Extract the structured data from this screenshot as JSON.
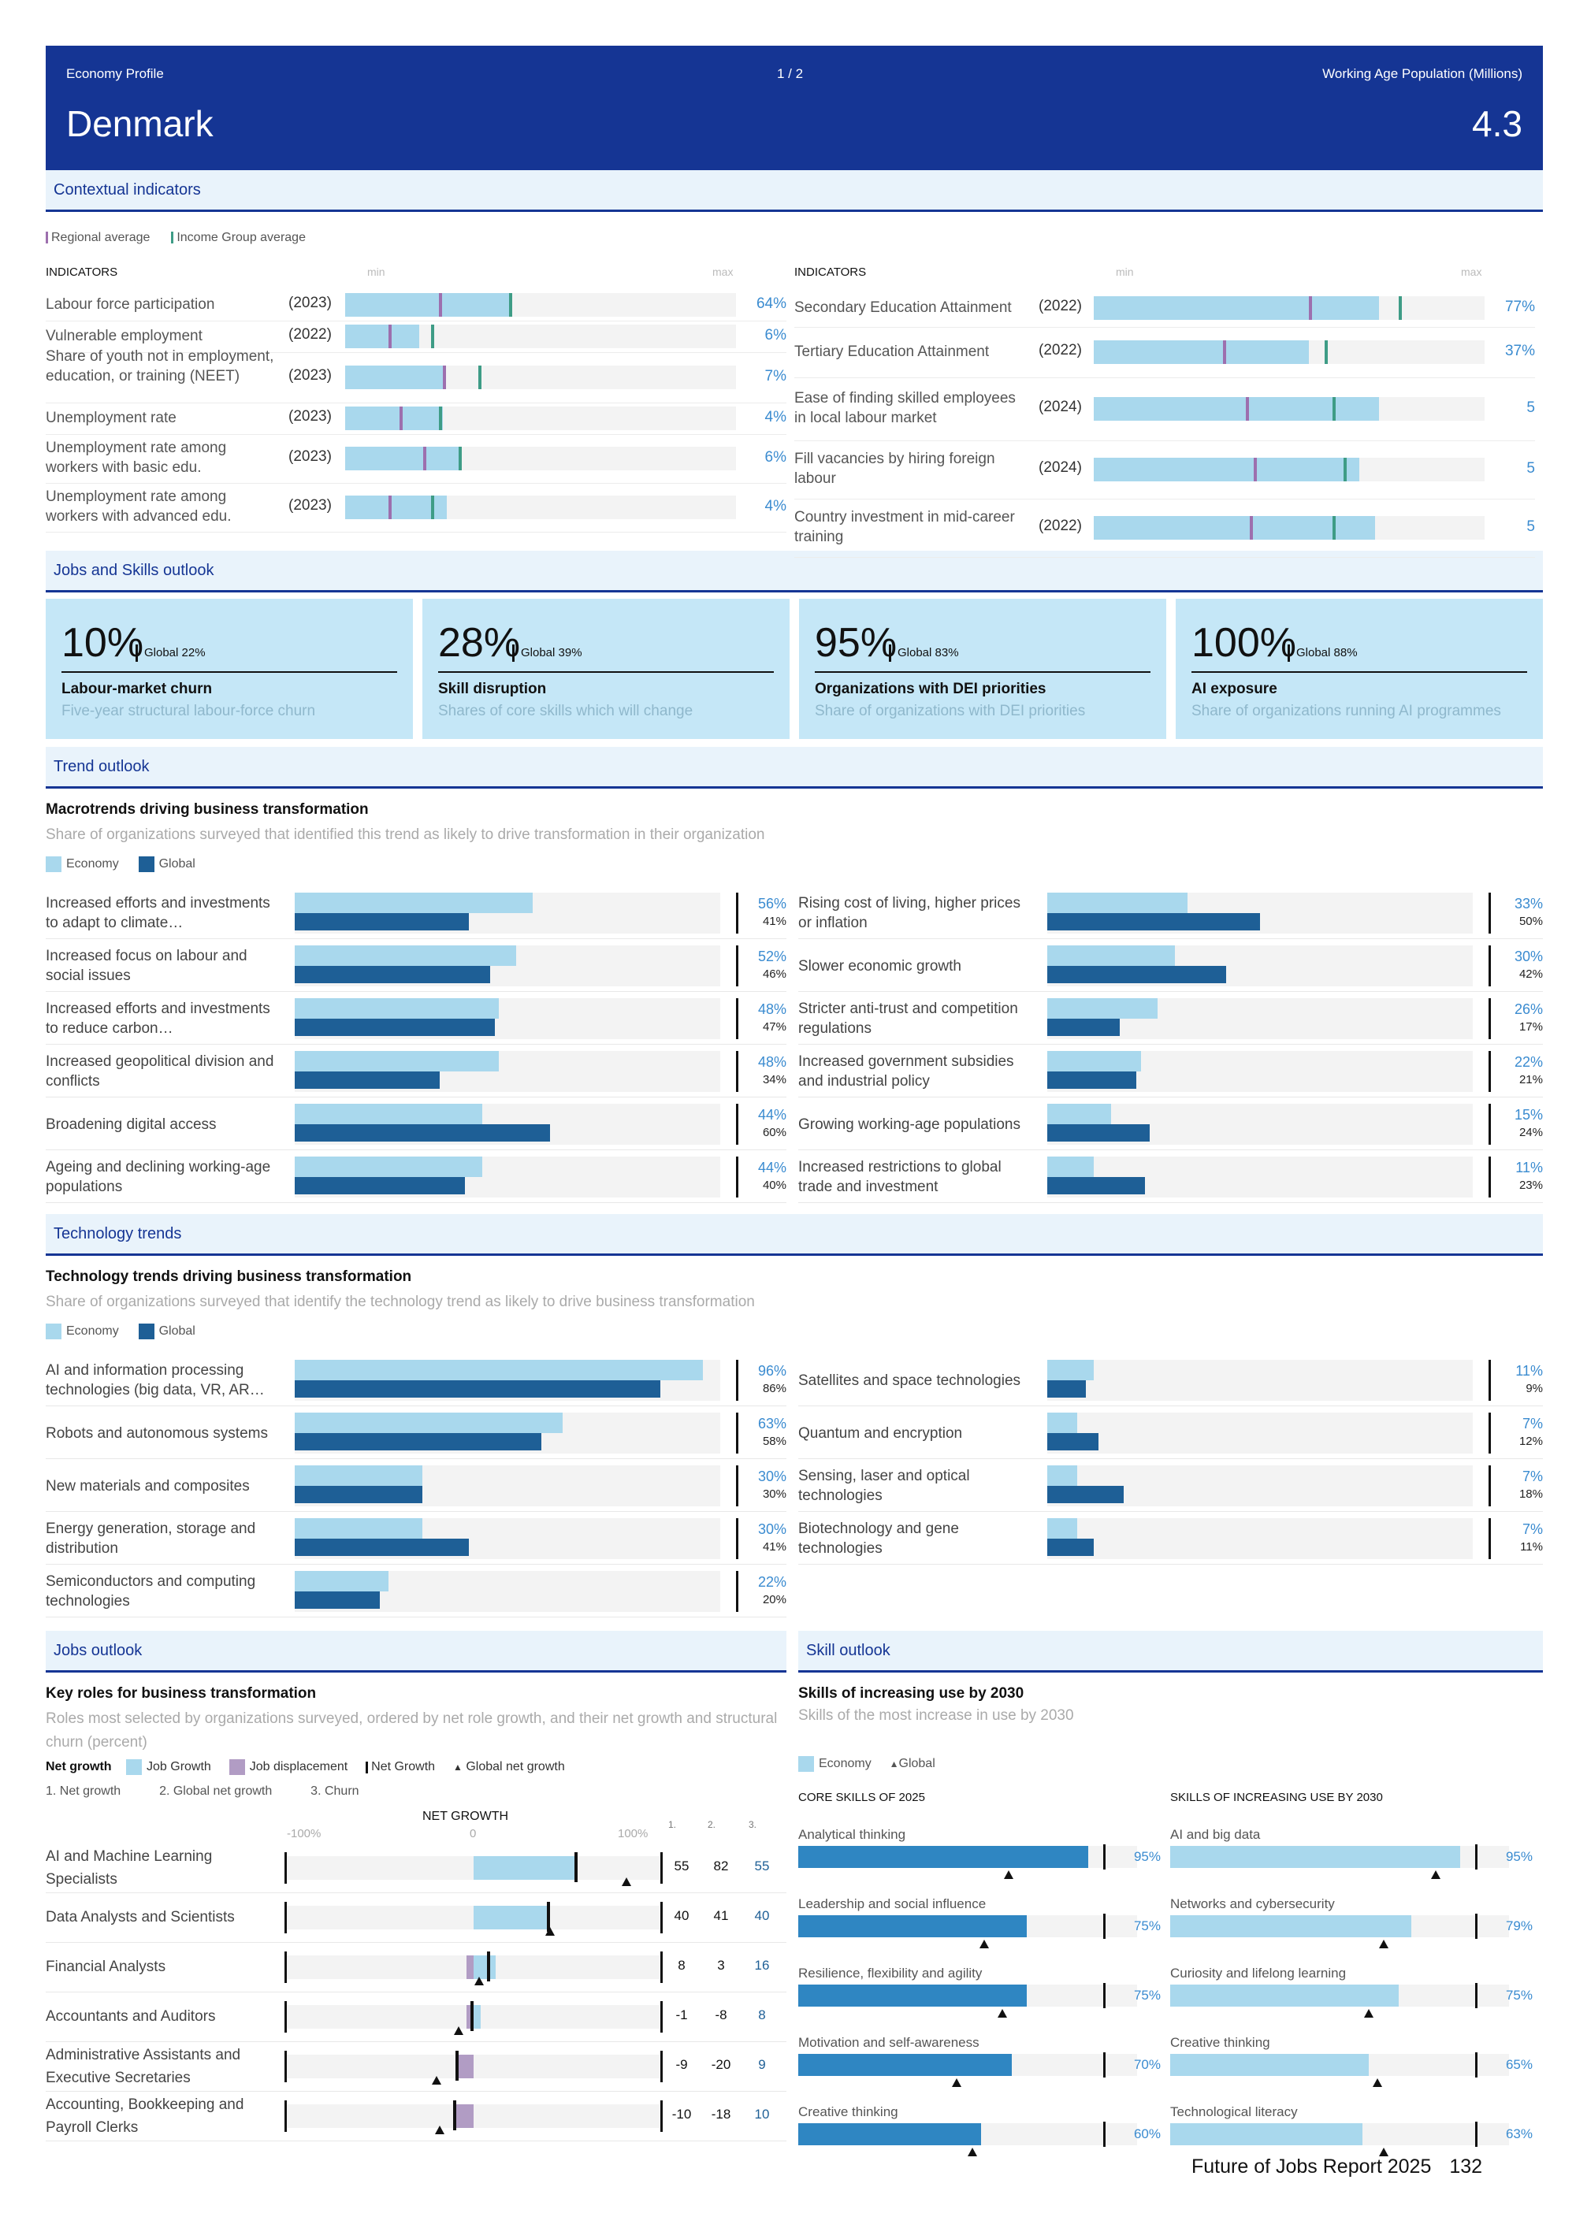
{
  "header": {
    "profile_label": "Economy Profile",
    "page_indicator": "1 / 2",
    "population_label": "Working Age Population (Millions)",
    "country": "Denmark",
    "population_value": "4.3"
  },
  "contextual": {
    "section_title": "Contextual indicators",
    "legend_regional": "Regional average",
    "legend_income": "Income Group average",
    "col_header": "INDICATORS",
    "min_label": "min",
    "max_label": "max",
    "left": [
      {
        "name": "Labour force participation",
        "year": "(2023)",
        "value": "64%",
        "fill": 0.42,
        "regional": 0.24,
        "income": 0.42
      },
      {
        "name": "Vulnerable employment",
        "year": "(2022)",
        "value": "6%",
        "fill": 0.19,
        "regional": 0.11,
        "income": 0.22
      },
      {
        "name": "Share of youth not in employment, education, or training (NEET)",
        "year": "(2023)",
        "value": "7%",
        "fill": 0.25,
        "regional": 0.25,
        "income": 0.34
      },
      {
        "name": "Unemployment rate",
        "year": "(2023)",
        "value": "4%",
        "fill": 0.25,
        "regional": 0.14,
        "income": 0.24
      },
      {
        "name": "Unemployment rate among workers with basic edu.",
        "year": "(2023)",
        "value": "6%",
        "fill": 0.29,
        "regional": 0.2,
        "income": 0.29
      },
      {
        "name": "Unemployment rate among workers with advanced edu.",
        "year": "(2023)",
        "value": "4%",
        "fill": 0.26,
        "regional": 0.11,
        "income": 0.22
      }
    ],
    "right": [
      {
        "name": "Secondary Education Attainment",
        "year": "(2022)",
        "value": "77%",
        "fill": 0.73,
        "regional": 0.55,
        "income": 0.78
      },
      {
        "name": "Tertiary Education Attainment",
        "year": "(2022)",
        "value": "37%",
        "fill": 0.55,
        "regional": 0.33,
        "income": 0.59
      },
      {
        "name": "Ease of finding skilled employees in local labour market",
        "year": "(2024)",
        "value": "5",
        "fill": 0.73,
        "regional": 0.39,
        "income": 0.61
      },
      {
        "name": "Fill vacancies by hiring foreign labour",
        "year": "(2024)",
        "value": "5",
        "fill": 0.68,
        "regional": 0.41,
        "income": 0.64
      },
      {
        "name": "Country investment in mid-career training",
        "year": "(2022)",
        "value": "5",
        "fill": 0.72,
        "regional": 0.4,
        "income": 0.61
      }
    ]
  },
  "outlook": {
    "section_title": "Jobs and Skills outlook",
    "tiles": [
      {
        "big": "10%",
        "global": "Global  22%",
        "title": "Labour-market churn",
        "subtitle": "Five-year structural labour-force churn"
      },
      {
        "big": "28%",
        "global": "Global  39%",
        "title": "Skill disruption",
        "subtitle": "Shares of core skills which will change"
      },
      {
        "big": "95%",
        "global": "Global  83%",
        "title": "Organizations with DEI priorities",
        "subtitle": "Share of organizations with DEI priorities"
      },
      {
        "big": "100%",
        "global": "Global  88%",
        "title": "AI exposure",
        "subtitle": "Share of organizations running AI programmes"
      }
    ]
  },
  "trend": {
    "section_title": "Trend outlook",
    "title": "Macrotrends driving business transformation",
    "subtitle": "Share of organizations surveyed that identified this trend as likely to drive transformation in their organization",
    "legend_economy": "Economy",
    "legend_global": "Global",
    "left": [
      {
        "name": "Increased efforts and investments to adapt to climate…",
        "economy": 56,
        "global": 41,
        "economy_label": "56%",
        "global_label": "41%"
      },
      {
        "name": "Increased focus on labour and social issues",
        "economy": 52,
        "global": 46,
        "economy_label": "52%",
        "global_label": "46%"
      },
      {
        "name": "Increased efforts and investments to reduce carbon…",
        "economy": 48,
        "global": 47,
        "economy_label": "48%",
        "global_label": "47%"
      },
      {
        "name": "Increased geopolitical division and conflicts",
        "economy": 48,
        "global": 34,
        "economy_label": "48%",
        "global_label": "34%"
      },
      {
        "name": "Broadening digital access",
        "economy": 44,
        "global": 60,
        "economy_label": "44%",
        "global_label": "60%"
      },
      {
        "name": "Ageing and declining working-age populations",
        "economy": 44,
        "global": 40,
        "economy_label": "44%",
        "global_label": "40%"
      }
    ],
    "right": [
      {
        "name": "Rising cost of living, higher prices or inflation",
        "economy": 33,
        "global": 50,
        "economy_label": "33%",
        "global_label": "50%"
      },
      {
        "name": "Slower economic growth",
        "economy": 30,
        "global": 42,
        "economy_label": "30%",
        "global_label": "42%"
      },
      {
        "name": "Stricter anti-trust and competition regulations",
        "economy": 26,
        "global": 17,
        "economy_label": "26%",
        "global_label": "17%"
      },
      {
        "name": "Increased government subsidies and industrial policy",
        "economy": 22,
        "global": 21,
        "economy_label": "22%",
        "global_label": "21%"
      },
      {
        "name": "Growing working-age populations",
        "economy": 15,
        "global": 24,
        "economy_label": "15%",
        "global_label": "24%"
      },
      {
        "name": "Increased restrictions to global trade and investment",
        "economy": 11,
        "global": 23,
        "economy_label": "11%",
        "global_label": "23%"
      }
    ]
  },
  "technology": {
    "section_title": "Technology trends",
    "title": "Technology trends driving business transformation",
    "subtitle": "Share of organizations surveyed that identify the technology trend as likely to drive business transformation",
    "legend_economy": "Economy",
    "legend_global": "Global",
    "left": [
      {
        "name": "AI and information processing technologies (big data, VR, AR…",
        "economy": 96,
        "global": 86,
        "economy_label": "96%",
        "global_label": "86%"
      },
      {
        "name": "Robots and autonomous systems",
        "economy": 63,
        "global": 58,
        "economy_label": "63%",
        "global_label": "58%"
      },
      {
        "name": "New materials and composites",
        "economy": 30,
        "global": 30,
        "economy_label": "30%",
        "global_label": "30%"
      },
      {
        "name": "Energy generation, storage and distribution",
        "economy": 30,
        "global": 41,
        "economy_label": "30%",
        "global_label": "41%"
      },
      {
        "name": "Semiconductors and computing technologies",
        "economy": 22,
        "global": 20,
        "economy_label": "22%",
        "global_label": "20%"
      }
    ],
    "right": [
      {
        "name": "Satellites and space technologies",
        "economy": 11,
        "global": 9,
        "economy_label": "11%",
        "global_label": "9%"
      },
      {
        "name": "Quantum and encryption",
        "economy": 7,
        "global": 12,
        "economy_label": "7%",
        "global_label": "12%"
      },
      {
        "name": "Sensing, laser and optical technologies",
        "economy": 7,
        "global": 18,
        "economy_label": "7%",
        "global_label": "18%"
      },
      {
        "name": "Biotechnology and gene technologies",
        "economy": 7,
        "global": 11,
        "economy_label": "7%",
        "global_label": "11%"
      }
    ]
  },
  "jobs": {
    "section_title": "Jobs outlook",
    "title": "Key roles for business transformation",
    "subtitle": "Roles most selected by organizations surveyed, ordered by net role growth, and their net growth and structural churn (percent)",
    "legend_net_growth_heading": "Net growth",
    "legend_job_growth": "Job Growth",
    "legend_job_displacement": "Job displacement",
    "legend_net_growth": "Net Growth",
    "legend_global_net": "Global net growth",
    "col_key_1": "1. Net growth",
    "col_key_2": "2. Global net growth",
    "col_key_3": "3. Churn",
    "axis_title": "NET GROWTH",
    "axis_min": "-100%",
    "axis_mid": "0",
    "axis_max": "100%",
    "col_h1": "1.",
    "col_h2": "2.",
    "col_h3": "3.",
    "roles": [
      {
        "name": "AI and Machine Learning Specialists",
        "growth": 55,
        "displacement": 0,
        "net": 55,
        "global": 82,
        "c1": "55",
        "c2": "82",
        "c3": "55"
      },
      {
        "name": "Data Analysts and Scientists",
        "growth": 40,
        "displacement": 0,
        "net": 40,
        "global": 41,
        "c1": "40",
        "c2": "41",
        "c3": "40"
      },
      {
        "name": "Financial Analysts",
        "growth": 12,
        "displacement": -4,
        "net": 8,
        "global": 3,
        "c1": "8",
        "c2": "3",
        "c3": "16"
      },
      {
        "name": "Accountants and Auditors",
        "growth": 4,
        "displacement": -4,
        "net": -1,
        "global": -8,
        "c1": "-1",
        "c2": "-8",
        "c3": "8"
      },
      {
        "name": "Administrative Assistants and Executive Secretaries",
        "growth": 0,
        "displacement": -9,
        "net": -9,
        "global": -20,
        "c1": "-9",
        "c2": "-20",
        "c3": "9"
      },
      {
        "name": "Accounting, Bookkeeping and Payroll Clerks",
        "growth": 0,
        "displacement": -10,
        "net": -10,
        "global": -18,
        "c1": "-10",
        "c2": "-18",
        "c3": "10"
      }
    ]
  },
  "skills": {
    "section_title": "Skill outlook",
    "title": "Skills of increasing use by 2030",
    "subtitle": "Skills of the most increase in use by 2030",
    "legend_economy": "Economy",
    "legend_global": "Global",
    "core_header": "CORE SKILLS OF 2025",
    "increasing_header": "SKILLS OF INCREASING USE BY 2030",
    "core": [
      {
        "name": "Analytical thinking",
        "value": 95,
        "label": "95%",
        "global": 69
      },
      {
        "name": "Leadership and social influence",
        "value": 75,
        "label": "75%",
        "global": 61
      },
      {
        "name": "Resilience, flexibility and agility",
        "value": 75,
        "label": "75%",
        "global": 67
      },
      {
        "name": "Motivation and self-awareness",
        "value": 70,
        "label": "70%",
        "global": 52
      },
      {
        "name": "Creative thinking",
        "value": 60,
        "label": "60%",
        "global": 57
      }
    ],
    "increasing": [
      {
        "name": "AI and big data",
        "value": 95,
        "label": "95%",
        "global": 87
      },
      {
        "name": "Networks and cybersecurity",
        "value": 79,
        "label": "79%",
        "global": 70
      },
      {
        "name": "Curiosity and lifelong learning",
        "value": 75,
        "label": "75%",
        "global": 65
      },
      {
        "name": "Creative thinking",
        "value": 65,
        "label": "65%",
        "global": 68
      },
      {
        "name": "Technological literacy",
        "value": 63,
        "label": "63%",
        "global": 70
      }
    ]
  },
  "footer": {
    "report": "Future of Jobs Report 2025",
    "page": "132"
  },
  "colors": {
    "header_bg": "#153594",
    "economy": "#a9d8ed",
    "global": "#1e5f96",
    "displacement": "#b19cc4",
    "regional_marker": "#9d6fae",
    "income_marker": "#3e9c86",
    "value_text": "#3a8bd0"
  }
}
